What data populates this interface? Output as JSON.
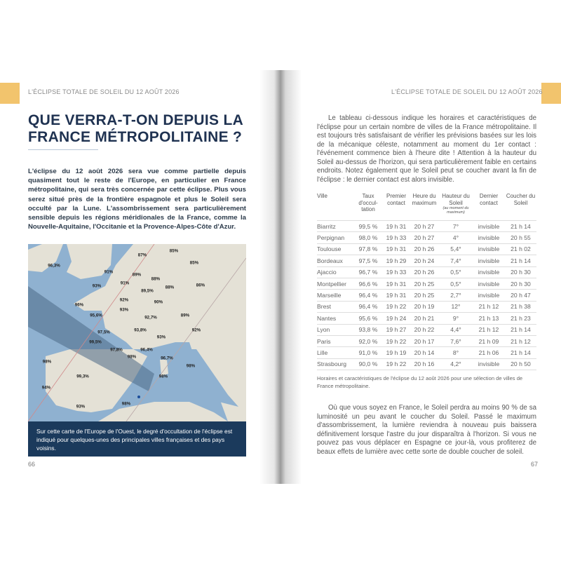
{
  "running_head": "L'ÉCLIPSE TOTALE DE SOLEIL DU 12 AOÛT 2026",
  "accent_color": "#f2c46d",
  "left_page": {
    "title": "QUE VERRA-T-ON DEPUIS LA FRANCE MÉTROPOLITAINE ?",
    "intro": "L'éclipse du 12 août 2026 sera vue comme partielle depuis quasiment tout le reste de l'Europe, en particulier en France métropolitaine, qui sera très concernée par cette éclipse. Plus vous serez situé près de la frontière espagnole et plus le Soleil sera occulté par la Lune. L'assombrissement sera particulièrement sensible depuis les régions méridionales de la France, comme la Nouvelle-Aquitaine, l'Occitanie et la Provence-Alpes-Côte d'Azur.",
    "map_labels": [
      "96,3%",
      "87%",
      "85%",
      "85%",
      "91%",
      "89%",
      "88%",
      "91%",
      "93%",
      "89,5%",
      "88%",
      "86%",
      "92%",
      "90%",
      "96%",
      "93%",
      "95,6%",
      "92,7%",
      "89%",
      "97,5%",
      "93,8%",
      "93%",
      "92%",
      "99,5%",
      "97,8%",
      "98%",
      "96,4%",
      "96,7%",
      "98%",
      "98%",
      "99,3%",
      "98%",
      "94%",
      "93%",
      "98%"
    ],
    "map_caption": "Sur cette carte de l'Europe de l'Ouest, le degré d'occultation de l'éclipse est indiqué pour quelques-unes des principales villes françaises et des pays voisins.",
    "page_number": "66"
  },
  "right_page": {
    "paragraph1": "Le tableau ci-dessous indique les horaires et caractéristiques de l'éclipse pour un certain nombre de villes de la France métropolitaine. Il est toujours très satisfaisant de vérifier les prévisions basées sur les lois de la mécanique céleste, notamment au moment du 1er contact : l'événement commence bien à l'heure dite ! Attention à la hauteur du Soleil au-dessus de l'horizon, qui sera particulièrement faible en certains endroits. Notez également que le Soleil peut se coucher avant la fin de l'éclipse : le dernier contact est alors invisible.",
    "table": {
      "headers": [
        "Ville",
        "Taux d'occul-tation",
        "Premier contact",
        "Heure du maximum",
        "Hauteur du Soleil",
        "Dernier contact",
        "Coucher du Soleil"
      ],
      "header_note": "(au moment du maximum)",
      "rows": [
        [
          "Biarritz",
          "99,5 %",
          "19 h 31",
          "20 h 27",
          "7°",
          "invisible",
          "21 h 14"
        ],
        [
          "Perpignan",
          "98,0 %",
          "19 h 33",
          "20 h 27",
          "4°",
          "invisible",
          "20 h 55"
        ],
        [
          "Toulouse",
          "97,8 %",
          "19 h 31",
          "20 h 26",
          "5,4°",
          "invisible",
          "21 h 02"
        ],
        [
          "Bordeaux",
          "97,5 %",
          "19 h 29",
          "20 h 24",
          "7,4°",
          "invisible",
          "21 h 14"
        ],
        [
          "Ajaccio",
          "96,7 %",
          "19 h 33",
          "20 h 26",
          "0,5°",
          "invisible",
          "20 h 30"
        ],
        [
          "Montpellier",
          "96,6 %",
          "19 h 31",
          "20 h 25",
          "0,5°",
          "invisible",
          "20 h 30"
        ],
        [
          "Marseille",
          "96,4 %",
          "19 h 31",
          "20 h 25",
          "2,7°",
          "invisible",
          "20 h 47"
        ],
        [
          "Brest",
          "96,4 %",
          "19 h 22",
          "20 h 19",
          "12°",
          "21 h 12",
          "21 h 38"
        ],
        [
          "Nantes",
          "95,6 %",
          "19 h 24",
          "20 h 21",
          "9°",
          "21 h 13",
          "21 h 23"
        ],
        [
          "Lyon",
          "93,8 %",
          "19 h 27",
          "20 h 22",
          "4,4°",
          "21 h 12",
          "21 h 14"
        ],
        [
          "Paris",
          "92,0 %",
          "19 h 22",
          "20 h 17",
          "7,6°",
          "21 h 09",
          "21 h 12"
        ],
        [
          "Lille",
          "91,0 %",
          "19 h 19",
          "20 h 14",
          "8°",
          "21 h 06",
          "21 h 14"
        ],
        [
          "Strasbourg",
          "90,0 %",
          "19 h 22",
          "20 h 16",
          "4,2°",
          "invisible",
          "20 h 50"
        ]
      ]
    },
    "table_caption": "Horaires et caractéristiques de l'éclipse du 12 août 2026 pour une sélection de villes de France métropolitaine.",
    "paragraph2": "Où que vous soyez en France, le Soleil perdra au moins 90 % de sa luminosité un peu avant le coucher du Soleil. Passé le maximum d'assombrissement, la lumière reviendra à nouveau puis baissera définitivement lorsque l'astre du jour disparaîtra à l'horizon. Si vous ne pouvez pas vous déplacer en Espagne ce jour-là, vous profiterez de beaux effets de lumière avec cette sorte de double coucher de soleil.",
    "page_number": "67"
  }
}
